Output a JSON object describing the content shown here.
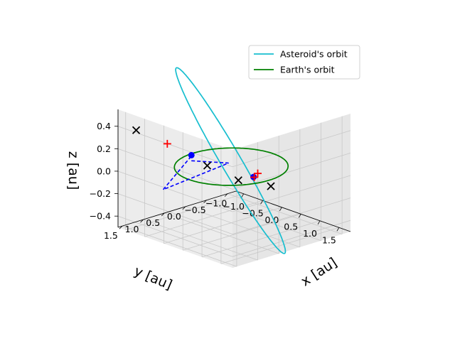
{
  "chart_data": {
    "type": "line3d",
    "xlabel": "x [au]",
    "ylabel": "y [au]",
    "zlabel": "z [au]",
    "xlim": [
      -1.2,
      1.8
    ],
    "ylim": [
      -1.2,
      1.6
    ],
    "zlim": [
      -0.5,
      0.55
    ],
    "xticks": [
      "−1.0",
      "−0.5",
      "0.0",
      "0.5",
      "1.0",
      "1.5"
    ],
    "yticks": [
      "−1.0",
      "−0.5",
      "0.0",
      "0.5",
      "1.0",
      "1.5"
    ],
    "zticks": [
      "−0.4",
      "−0.2",
      "0.0",
      "0.2",
      "0.4"
    ],
    "grid": true,
    "legend_position": "top-right",
    "series": [
      {
        "name": "Asteroid's orbit",
        "color": "#17becf",
        "style": "solid",
        "orbit": {
          "semi_major_axis": 1.3,
          "eccentricity": 0.25,
          "inclination_deg": 40,
          "ascending_node_deg": 40,
          "arg_perihelion_deg": 0
        }
      },
      {
        "name": "Earth's orbit",
        "color": "#008000",
        "style": "solid",
        "orbit": {
          "semi_major_axis": 1.0,
          "eccentricity": 0.0,
          "inclination_deg": 0,
          "ascending_node_deg": 0,
          "arg_perihelion_deg": 0
        }
      }
    ],
    "transfer_path": {
      "color": "#0000ff",
      "style": "dashed",
      "points": [
        [
          -0.05,
          0.9,
          0.15
        ],
        [
          -0.4,
          -0.3,
          -0.05
        ],
        [
          -0.9,
          0.8,
          -0.22
        ],
        [
          -0.1,
          0.8,
          0.2
        ]
      ]
    },
    "markers": [
      {
        "type": "x",
        "color": "#000000",
        "point": [
          -1.0,
          1.35,
          0.36
        ]
      },
      {
        "type": "x",
        "color": "#000000",
        "point": [
          0.85,
          0.6,
          0.05
        ]
      },
      {
        "type": "x",
        "color": "#000000",
        "point": [
          0.2,
          0.75,
          0.12
        ]
      },
      {
        "type": "x",
        "color": "#000000",
        "point": [
          0.1,
          -0.85,
          -0.26
        ]
      },
      {
        "type": "plus",
        "color": "#ff0000",
        "point": [
          -0.35,
          1.2,
          0.3
        ]
      },
      {
        "type": "plus",
        "color": "#ff0000",
        "point": [
          -0.3,
          -0.9,
          -0.2
        ]
      },
      {
        "type": "dot",
        "color": "#0000ff",
        "point": [
          -0.05,
          0.9,
          0.2
        ]
      },
      {
        "type": "dot",
        "color": "#0000ff",
        "point": [
          -0.3,
          -0.8,
          -0.22
        ]
      },
      {
        "type": "plus",
        "color": "#ff0000",
        "point": [
          -0.28,
          -0.8,
          -0.22
        ]
      }
    ]
  }
}
